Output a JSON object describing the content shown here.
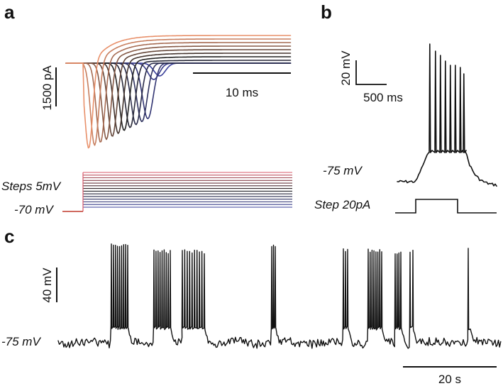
{
  "panels": {
    "a": {
      "letter": "a",
      "scale_current": "1500 pA",
      "scale_time": "10 ms",
      "steps_label": "Steps 5mV",
      "hold_label": "-70 mV"
    },
    "b": {
      "letter": "b",
      "scale_voltage": "20 mV",
      "scale_time": "500 ms",
      "rest_label": "-75 mV",
      "step_label": "Step 20pA"
    },
    "c": {
      "letter": "c",
      "scale_voltage": "40 mV",
      "rest_label": "-75 mV",
      "scale_time": "20 s"
    }
  },
  "chart_data": [
    {
      "type": "line",
      "panel": "a",
      "description_units": "voltage-clamp currents (pA) vs time (ms)",
      "n_traces": 13,
      "voltage_steps_mV": [
        -70,
        -65,
        -60,
        -55,
        -50,
        -45,
        -40,
        -35,
        -30,
        -25,
        -20,
        -15,
        -10,
        -5
      ],
      "colors": {
        "low": "#3a3f9a",
        "mid": "#222222",
        "high": "#e8906a"
      },
      "scale_bars": {
        "current_pA": 1500,
        "time_ms": 10
      }
    },
    {
      "type": "line",
      "panel": "b",
      "description_units": "membrane voltage (mV) vs time (ms)",
      "rest_mV": -75,
      "spike_count": 8,
      "current_step_pA": 20,
      "scale_bars": {
        "voltage_mV": 20,
        "time_ms": 500
      }
    },
    {
      "type": "line",
      "panel": "c",
      "description_units": "membrane voltage (mV) vs time (s)",
      "rest_mV": -75,
      "burst_count": 9,
      "scale_bars": {
        "voltage_mV": 40,
        "time_s": 20
      }
    }
  ]
}
